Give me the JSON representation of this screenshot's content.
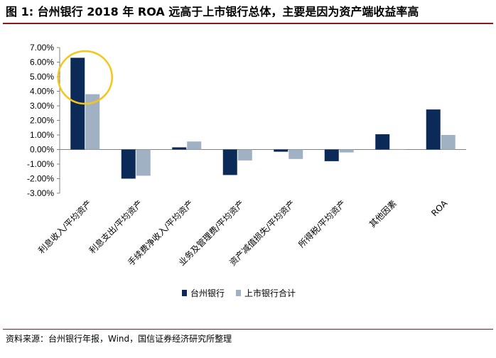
{
  "header": {
    "title": "图 1:  台州银行 2018 年 ROA 远高于上市银行总体，主要是因为资产端收益率高"
  },
  "footer": {
    "source": "资料来源：台州银行年报，Wind，国信证券经济研究所整理"
  },
  "colors": {
    "series1": "#0b2a57",
    "series2": "#9fb1c3",
    "highlight": "#f5c518",
    "axis": "#808080"
  },
  "chart_data": {
    "type": "bar",
    "title": "",
    "xlabel": "",
    "ylabel": "",
    "ylim": [
      -3,
      7
    ],
    "ytick_step": 1,
    "ytick_format": "percent_2dp",
    "yticks": [
      "7.00%",
      "6.00%",
      "5.00%",
      "4.00%",
      "3.00%",
      "2.00%",
      "1.00%",
      "0.00%",
      "-1.00%",
      "-2.00%",
      "-3.00%"
    ],
    "categories": [
      "利息收入/平均资产",
      "利息支出/平均资产",
      "手续费净收入/平均资产",
      "业务及管理费/平均资产",
      "资产减值损失/平均资产",
      "所得税/平均资产",
      "其他因素",
      "ROA"
    ],
    "series": [
      {
        "name": "台州银行",
        "values": [
          6.3,
          -2.0,
          0.15,
          -1.75,
          -0.15,
          -0.8,
          1.05,
          2.75
        ]
      },
      {
        "name": "上市银行合计",
        "values": [
          3.8,
          -1.8,
          0.55,
          -0.75,
          -0.65,
          -0.2,
          0.03,
          1.0
        ]
      }
    ],
    "legend_position": "bottom",
    "grid": false,
    "annotation": {
      "type": "circle",
      "category": "利息收入/平均资产"
    }
  }
}
